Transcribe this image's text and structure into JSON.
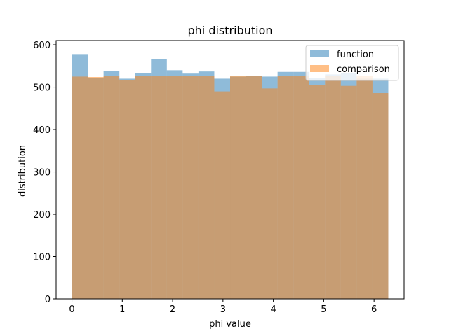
{
  "chart_data": {
    "type": "histogram",
    "title": "phi distribution",
    "xlabel": "phi value",
    "ylabel": "distribution",
    "xlim": [
      -0.314,
      6.597
    ],
    "ylim": [
      0,
      610
    ],
    "xticks": [
      0,
      1,
      2,
      3,
      4,
      5,
      6
    ],
    "yticks": [
      0,
      100,
      200,
      300,
      400,
      500,
      600
    ],
    "bin_edges": [
      0.0,
      0.31416,
      0.62832,
      0.94248,
      1.25664,
      1.5708,
      1.88496,
      2.19911,
      2.51327,
      2.82743,
      3.14159,
      3.45575,
      3.76991,
      4.08407,
      4.39823,
      4.71239,
      5.02655,
      5.34071,
      5.65487,
      5.96903,
      6.28319
    ],
    "legend_position": "upper right",
    "grid": false,
    "series": [
      {
        "name": "function",
        "color": "#1f77b4",
        "alpha": 0.5,
        "values": [
          578,
          522,
          538,
          520,
          533,
          566,
          540,
          532,
          537,
          520,
          525,
          526,
          525,
          536,
          536,
          522,
          530,
          534,
          520,
          520
        ]
      },
      {
        "name": "comparison",
        "color": "#ff7f0e",
        "alpha": 0.5,
        "values": [
          525,
          524,
          526,
          516,
          526,
          526,
          526,
          526,
          526,
          490,
          526,
          526,
          497,
          526,
          526,
          505,
          526,
          503,
          526,
          486
        ]
      }
    ]
  }
}
